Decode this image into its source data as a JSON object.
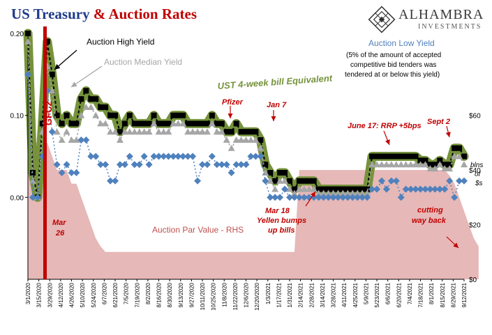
{
  "title": {
    "part1": "US Treasury",
    "part2": "& Auction Rates"
  },
  "logo": {
    "brand": "ALHAMBRA",
    "sub": "INVESTMENTS",
    "icon": "alhambra-diamond-icon"
  },
  "colors": {
    "high": "#000000",
    "median": "#a6a6a6",
    "low": "#4f81bd",
    "band": "#76933c",
    "par": "#e6b8b7",
    "annot_red": "#c00000",
    "label_green": "#4f6228"
  },
  "chart_data": {
    "type": "line",
    "x_tick_labels": [
      "3/1/2020",
      "3/15/2020",
      "3/29/2020",
      "4/12/2020",
      "4/26/2020",
      "5/10/2020",
      "5/24/2020",
      "6/7/2020",
      "6/21/2020",
      "7/5/2020",
      "7/19/2020",
      "8/2/2020",
      "8/16/2020",
      "8/30/2020",
      "9/13/2020",
      "9/27/2020",
      "10/11/2020",
      "10/25/2020",
      "11/8/2020",
      "11/22/2020",
      "12/6/2020",
      "12/20/2020",
      "1/3/2021",
      "1/17/2021",
      "1/31/2021",
      "2/14/2021",
      "2/28/2021",
      "3/14/2021",
      "3/28/2021",
      "4/11/2021",
      "4/25/2021",
      "5/9/2021",
      "5/23/2021",
      "6/6/2021",
      "6/20/2021",
      "7/4/2021",
      "7/18/2021",
      "8/1/2021",
      "8/15/2021",
      "8/29/2021",
      "9/12/2021"
    ],
    "y_left": {
      "ticks": [
        "0.20",
        "0.10",
        "0.00"
      ],
      "ylim": [
        -0.1,
        0.2
      ]
    },
    "y_right": {
      "ticks": [
        "$60",
        "$40",
        "$20",
        "$0"
      ],
      "ylim": [
        0,
        90
      ],
      "label": "blns of $s"
    },
    "series": [
      {
        "name": "Auction High Yield",
        "marker": "square",
        "values": [
          0.2,
          0.03,
          0.0,
          0.09,
          0.19,
          0.15,
          0.1,
          0.09,
          0.1,
          0.09,
          0.09,
          0.12,
          0.13,
          0.12,
          0.12,
          0.11,
          0.11,
          0.1,
          0.1,
          0.08,
          0.09,
          0.1,
          0.09,
          0.09,
          0.09,
          0.09,
          0.1,
          0.09,
          0.09,
          0.09,
          0.1,
          0.1,
          0.1,
          0.09,
          0.09,
          0.09,
          0.09,
          0.09,
          0.1,
          0.09,
          0.09,
          0.08,
          0.08,
          0.09,
          0.08,
          0.08,
          0.08,
          0.08,
          0.07,
          0.04,
          0.03,
          0.02,
          0.03,
          0.03,
          0.02,
          0.01,
          0.02,
          0.02,
          0.02,
          0.02,
          0.01,
          0.01,
          0.01,
          0.01,
          0.01,
          0.01,
          0.01,
          0.01,
          0.01,
          0.01,
          0.01,
          0.05,
          0.05,
          0.05,
          0.05,
          0.05,
          0.05,
          0.05,
          0.05,
          0.05,
          0.05,
          0.045,
          0.045,
          0.04,
          0.04,
          0.045,
          0.04,
          0.04,
          0.06,
          0.06,
          0.05
        ]
      },
      {
        "name": "Auction Median Yield",
        "marker": "triangle",
        "values": [
          0.19,
          0.02,
          0.0,
          0.08,
          0.16,
          0.13,
          0.08,
          0.07,
          0.08,
          0.07,
          0.07,
          0.1,
          0.11,
          0.11,
          0.1,
          0.09,
          0.09,
          0.08,
          0.08,
          0.07,
          0.08,
          0.08,
          0.08,
          0.08,
          0.08,
          0.08,
          0.09,
          0.08,
          0.08,
          0.08,
          0.09,
          0.09,
          0.09,
          0.08,
          0.08,
          0.08,
          0.08,
          0.08,
          0.09,
          0.08,
          0.08,
          0.07,
          0.06,
          0.07,
          0.07,
          0.07,
          0.07,
          0.07,
          0.06,
          0.03,
          0.02,
          0.01,
          0.02,
          0.02,
          0.01,
          0.005,
          0.01,
          0.01,
          0.01,
          0.01,
          0.005,
          0.005,
          0.005,
          0.005,
          0.005,
          0.005,
          0.005,
          0.005,
          0.005,
          0.005,
          0.005,
          0.04,
          0.04,
          0.04,
          0.04,
          0.04,
          0.04,
          0.04,
          0.04,
          0.04,
          0.04,
          0.04,
          0.04,
          0.035,
          0.035,
          0.04,
          0.035,
          0.035,
          0.05,
          0.05,
          0.04
        ]
      },
      {
        "name": "Auction Low Yield",
        "marker": "diamond",
        "values": [
          0.15,
          0.0,
          0.0,
          0.05,
          0.13,
          0.08,
          0.04,
          0.03,
          0.04,
          0.03,
          0.03,
          0.07,
          0.07,
          0.05,
          0.05,
          0.04,
          0.04,
          0.02,
          0.02,
          0.04,
          0.04,
          0.05,
          0.04,
          0.04,
          0.05,
          0.04,
          0.05,
          0.05,
          0.05,
          0.05,
          0.05,
          0.05,
          0.05,
          0.05,
          0.05,
          0.02,
          0.04,
          0.04,
          0.05,
          0.04,
          0.04,
          0.04,
          0.03,
          0.04,
          0.04,
          0.04,
          0.05,
          0.05,
          0.05,
          0.02,
          0.0,
          0.0,
          0.0,
          0.01,
          0.0,
          0.0,
          0.0,
          0.0,
          0.0,
          0.0,
          0.0,
          0.0,
          0.0,
          0.0,
          0.0,
          0.0,
          0.0,
          0.0,
          0.0,
          0.0,
          0.0,
          0.01,
          0.01,
          0.02,
          0.01,
          0.02,
          0.02,
          0.0,
          0.01,
          0.01,
          0.01,
          0.01,
          0.01,
          0.01,
          0.01,
          0.01,
          0.01,
          0.02,
          0.0,
          0.02,
          0.02
        ]
      },
      {
        "name": "Auction Par Value - RHS",
        "type": "area",
        "axis": "right",
        "values": [
          50,
          50,
          50,
          50,
          50,
          45,
          40,
          40,
          40,
          35,
          35,
          30,
          25,
          20,
          15,
          12,
          10,
          10,
          10,
          10,
          10,
          10,
          10,
          10,
          10,
          10,
          10,
          10,
          10,
          10,
          10,
          10,
          10,
          10,
          10,
          10,
          10,
          10,
          10,
          10,
          10,
          10,
          10,
          10,
          10,
          10,
          10,
          10,
          10,
          10,
          10,
          10,
          10,
          10,
          10,
          10,
          40,
          40,
          40,
          40,
          40,
          40,
          40,
          40,
          40,
          40,
          40,
          40,
          40,
          40,
          40,
          40,
          40,
          40,
          40,
          40,
          40,
          40,
          40,
          40,
          40,
          40,
          40,
          40,
          40,
          40,
          40,
          38,
          35,
          30,
          25,
          20,
          15,
          12
        ]
      }
    ],
    "band_label": "UST 4-week bill Equivalent"
  },
  "labels": {
    "high_yield": "Auction High Yield",
    "median_yield": "Auction Median Yield",
    "low_yield": "Auction Low Yield",
    "low_note_1": "(5% of the amount of accepted",
    "low_note_2": "competitive bid tenders was",
    "low_note_3": "tendered at or below this yield)",
    "band": "UST 4-week bill Equivalent",
    "par_value": "Auction Par Value - RHS",
    "gfc2": "GFC2",
    "mar26_1": "Mar",
    "mar26_2": "26",
    "pfizer": "Pfizer",
    "jan7": "Jan 7",
    "mar18_1": "Mar 18",
    "mar18_2": "Yellen bumps",
    "mar18_3": "up bills",
    "june17": "June 17: RRP +5bps",
    "sept2": "Sept 2",
    "cutting_1": "cutting",
    "cutting_2": "way back",
    "rhs_1": "blns",
    "rhs_2": "of",
    "rhs_3": "$s"
  }
}
